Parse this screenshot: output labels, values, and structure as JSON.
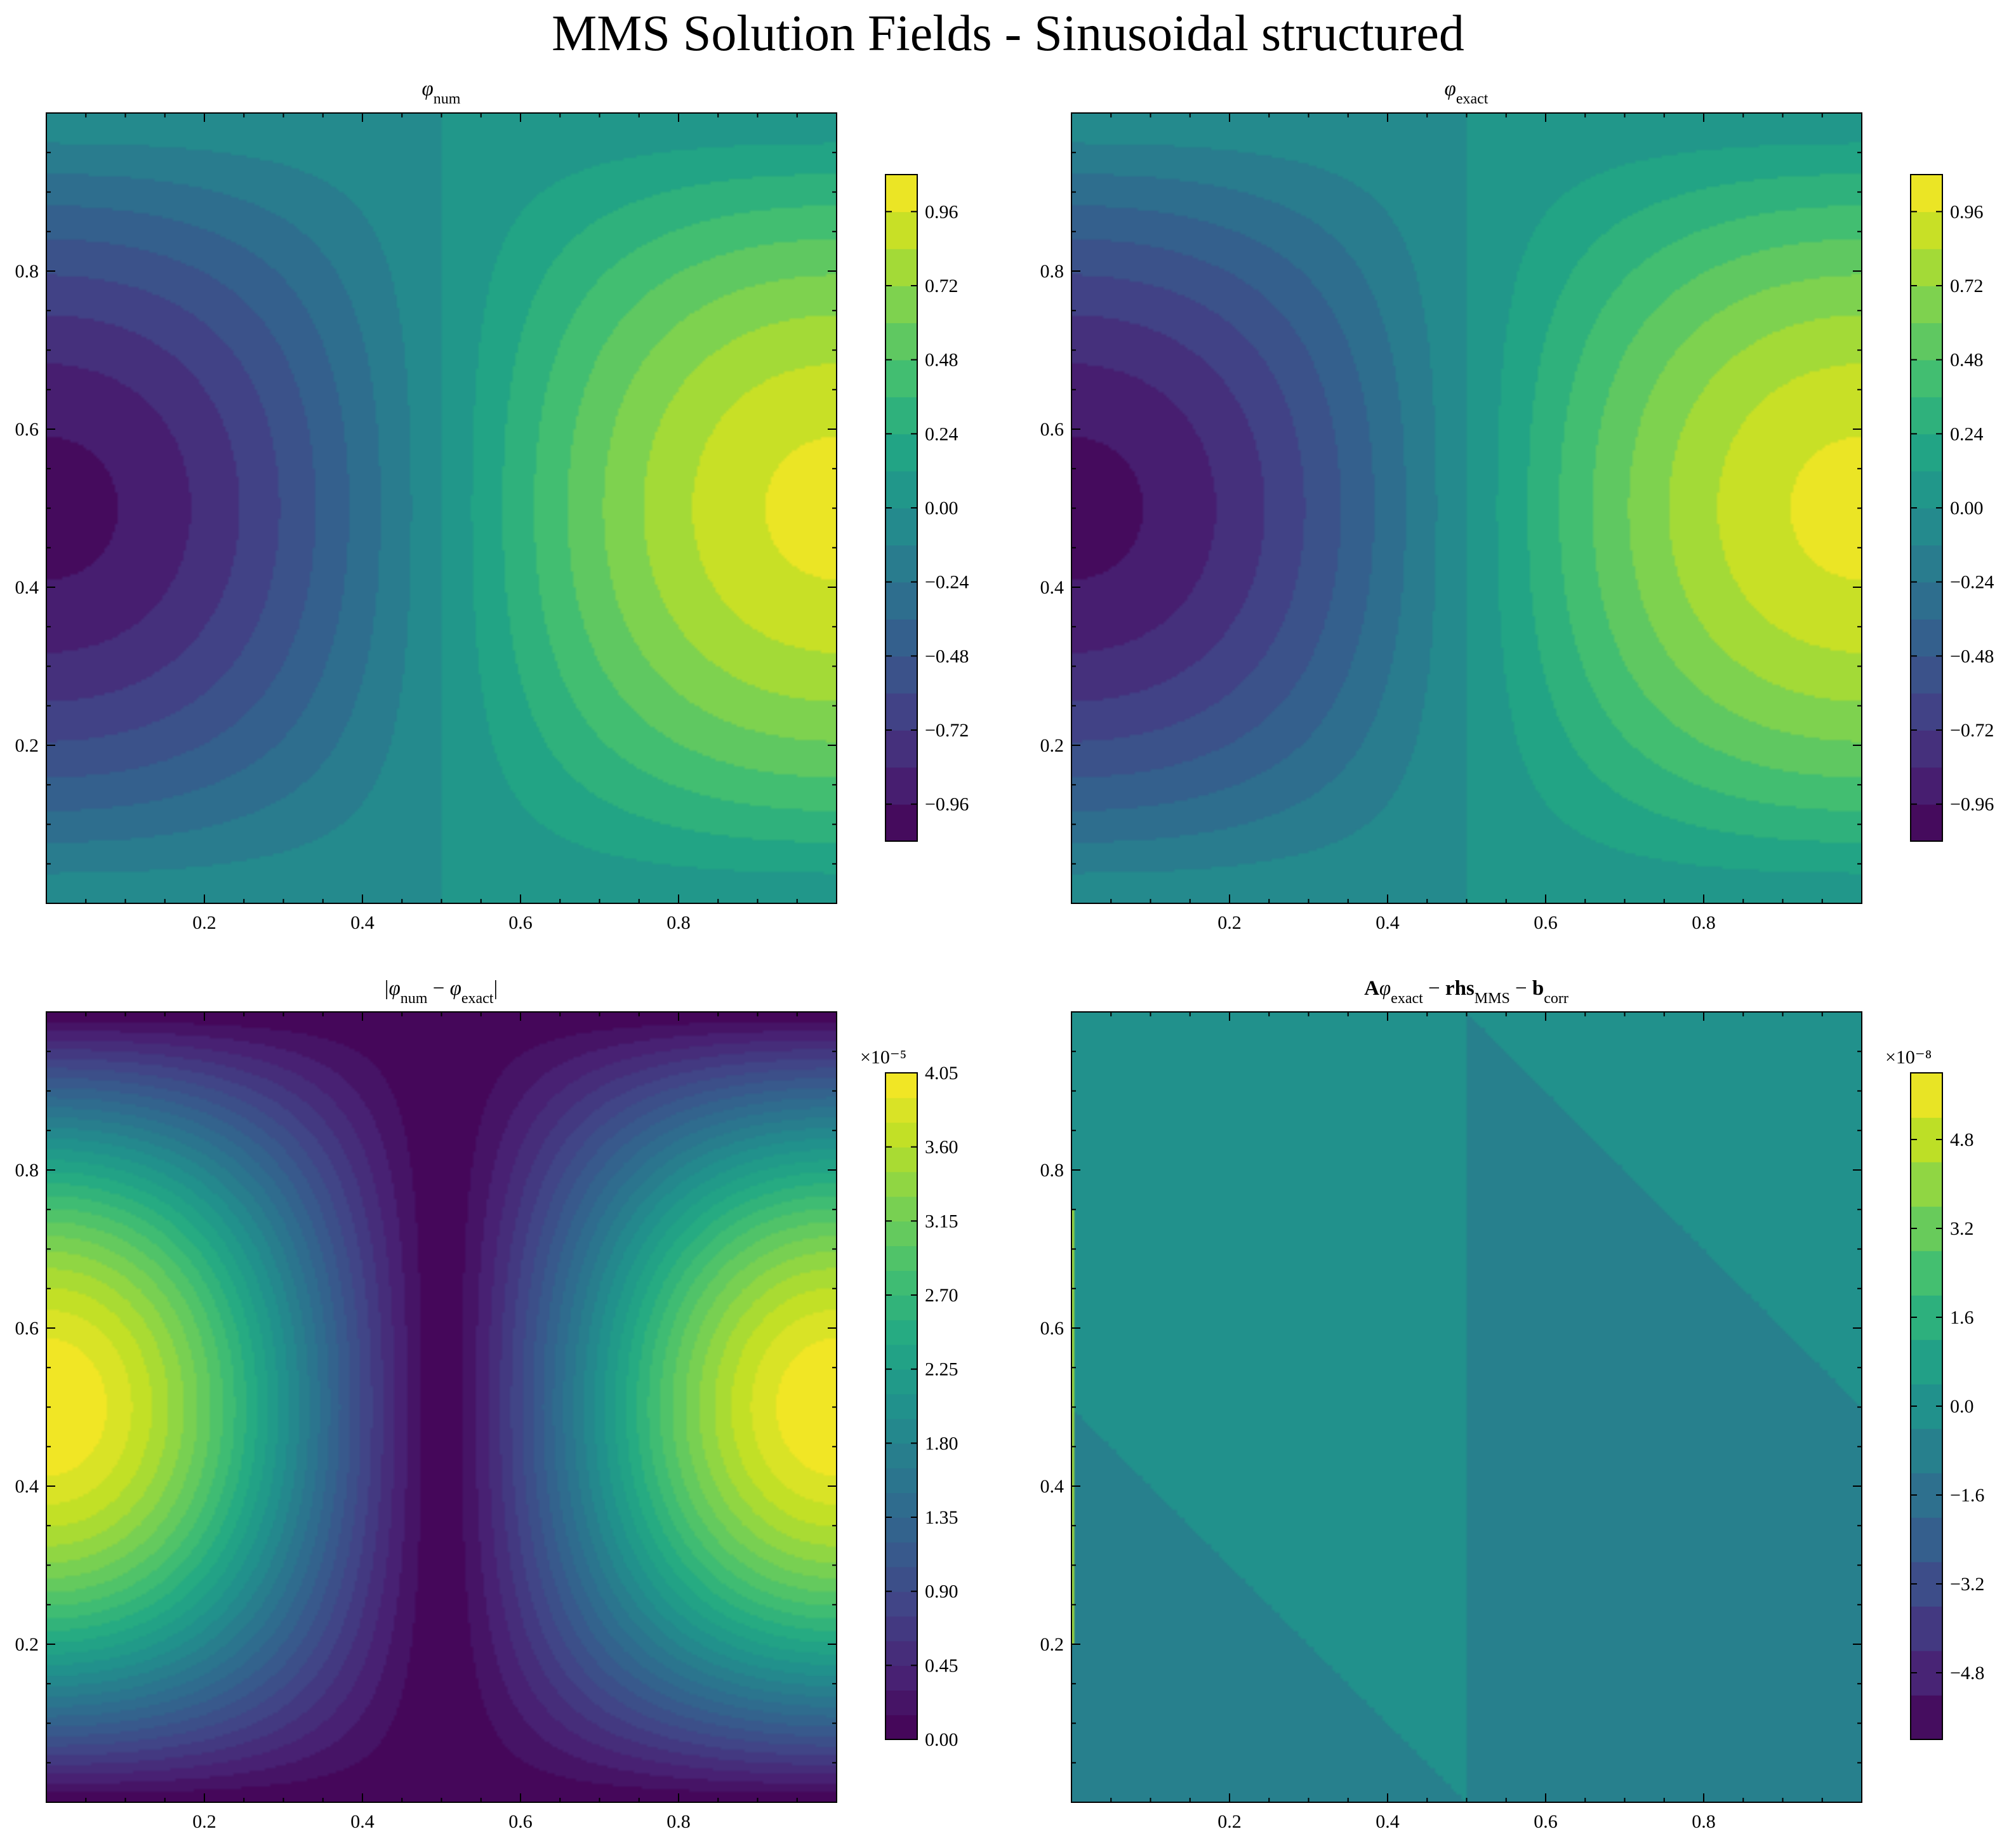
{
  "suptitle": "MMS Solution Fields - Sinusoidal structured",
  "colormap": [
    "#440154",
    "#482475",
    "#414487",
    "#355f8d",
    "#2a788e",
    "#21918c",
    "#22a884",
    "#44bf70",
    "#7ad151",
    "#bddf26",
    "#fde725"
  ],
  "chart_data": [
    {
      "type": "heatmap",
      "title": "φnum",
      "title_main": "φ",
      "title_sub": "num",
      "field": "sin(pi*(x-0.5))*sin(pi*y)",
      "xlim": [
        0,
        1
      ],
      "ylim": [
        0,
        1
      ],
      "xticks": [
        "0.2",
        "0.4",
        "0.6",
        "0.8"
      ],
      "yticks": [
        "0.2",
        "0.4",
        "0.6",
        "0.8"
      ],
      "clim": [
        -1.08,
        1.08
      ],
      "levels": 18,
      "colorbar_ticks": [
        "−0.96",
        "−0.72",
        "−0.48",
        "−0.24",
        "0.00",
        "0.24",
        "0.48",
        "0.72",
        "0.96"
      ],
      "colorbar_tick_values": [
        -0.96,
        -0.72,
        -0.48,
        -0.24,
        0.0,
        0.24,
        0.48,
        0.72,
        0.96
      ],
      "colorbar_multiplier": ""
    },
    {
      "type": "heatmap",
      "title": "φexact",
      "title_main": "φ",
      "title_sub": "exact",
      "field": "sin(pi*(x-0.5))*sin(pi*y)",
      "xlim": [
        0,
        1
      ],
      "ylim": [
        0,
        1
      ],
      "xticks": [
        "0.2",
        "0.4",
        "0.6",
        "0.8"
      ],
      "yticks": [
        "0.2",
        "0.4",
        "0.6",
        "0.8"
      ],
      "clim": [
        -1.08,
        1.08
      ],
      "levels": 18,
      "colorbar_ticks": [
        "−0.96",
        "−0.72",
        "−0.48",
        "−0.24",
        "0.00",
        "0.24",
        "0.48",
        "0.72",
        "0.96"
      ],
      "colorbar_tick_values": [
        -0.96,
        -0.72,
        -0.48,
        -0.24,
        0.0,
        0.24,
        0.48,
        0.72,
        0.96
      ],
      "colorbar_multiplier": ""
    },
    {
      "type": "heatmap",
      "title": "|φnum − φexact|",
      "field": "4.05e-5 * |sin(pi*(x-0.5))|^1.3 * sin(pi*y)",
      "xlim": [
        0,
        1
      ],
      "ylim": [
        0,
        1
      ],
      "xticks": [
        "0.2",
        "0.4",
        "0.6",
        "0.8"
      ],
      "yticks": [
        "0.2",
        "0.4",
        "0.6",
        "0.8"
      ],
      "clim": [
        0,
        4.05
      ],
      "levels": 27,
      "colorbar_ticks": [
        "0.00",
        "0.45",
        "0.90",
        "1.35",
        "1.80",
        "2.25",
        "2.70",
        "3.15",
        "3.60",
        "4.05"
      ],
      "colorbar_tick_values": [
        0,
        0.45,
        0.9,
        1.35,
        1.8,
        2.25,
        2.7,
        3.15,
        3.6,
        4.05
      ],
      "colorbar_multiplier": "×10⁻⁵"
    },
    {
      "type": "heatmap",
      "title": "Aφexact − rhsMMS − bcorr",
      "field": "near-zero residual",
      "xlim": [
        0,
        1
      ],
      "ylim": [
        0,
        1
      ],
      "xticks": [
        "0.2",
        "0.4",
        "0.6",
        "0.8"
      ],
      "yticks": [
        "0.2",
        "0.4",
        "0.6",
        "0.8"
      ],
      "clim": [
        -6.0,
        6.0
      ],
      "levels": 15,
      "colorbar_ticks": [
        "−4.8",
        "−3.2",
        "−1.6",
        "0.0",
        "1.6",
        "3.2",
        "4.8"
      ],
      "colorbar_tick_values": [
        -4.8,
        -3.2,
        -1.6,
        0.0,
        1.6,
        3.2,
        4.8
      ],
      "colorbar_multiplier": "×10⁻⁸"
    }
  ]
}
